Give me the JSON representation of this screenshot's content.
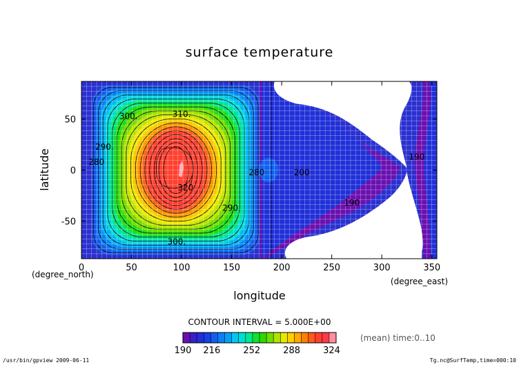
{
  "chart_data": {
    "type": "heatmap",
    "title": "surface temperature",
    "xlabel": "longitude",
    "ylabel": "latitude",
    "x_unit": "(degree_east)",
    "y_unit": "(degree_north)",
    "xlim": [
      0,
      355
    ],
    "ylim": [
      -87,
      87
    ],
    "x_ticks": [
      0,
      50,
      100,
      150,
      200,
      250,
      300,
      350
    ],
    "y_ticks": [
      50,
      0,
      -50
    ],
    "grid": true,
    "contour_interval_text": "CONTOUR INTERVAL = 5.000E+00",
    "contour_labels": [
      {
        "text": "310.",
        "lon": 100,
        "lat": 52
      },
      {
        "text": "300.",
        "lon": 47,
        "lat": 50
      },
      {
        "text": "320",
        "lon": 104,
        "lat": -20
      },
      {
        "text": "290.",
        "lon": 23,
        "lat": 20
      },
      {
        "text": "280",
        "lon": 15,
        "lat": 5
      },
      {
        "text": "290.",
        "lon": 150,
        "lat": -40
      },
      {
        "text": "300.",
        "lon": 95,
        "lat": -73
      },
      {
        "text": "280",
        "lon": 175,
        "lat": -5
      },
      {
        "text": "200",
        "lon": 220,
        "lat": -5
      },
      {
        "text": "190",
        "lon": 270,
        "lat": -35
      },
      {
        "text": "190",
        "lon": 335,
        "lat": 10
      }
    ],
    "colorbar": {
      "min": 190,
      "max": 328,
      "ticks": [
        190,
        216,
        252,
        288,
        324
      ],
      "colors": [
        "#6a0fb0",
        "#3a1ec8",
        "#2030d8",
        "#1840e8",
        "#1060f0",
        "#0a80f4",
        "#00a0f8",
        "#00c8f0",
        "#00e0d0",
        "#00e890",
        "#10e030",
        "#30d800",
        "#70dc00",
        "#b0e400",
        "#e8e800",
        "#ffd000",
        "#ffa800",
        "#ff8000",
        "#ff5a1e",
        "#ff4030",
        "#ff3a4a",
        "#ff8fa0"
      ]
    }
  },
  "footer": {
    "left": "/usr/bin/gpview  2009-06-11",
    "right": "Tg.nc@SurfTemp,time=000:10"
  },
  "annotation": "(mean) time:0..10"
}
